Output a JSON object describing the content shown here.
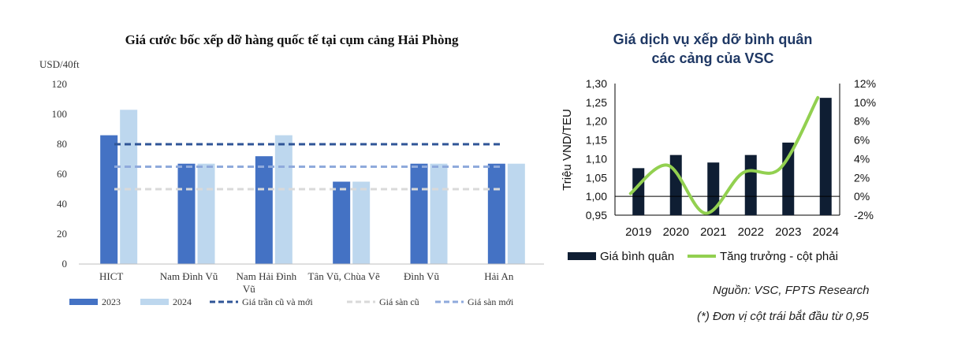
{
  "chart_data": [
    {
      "type": "bar",
      "title": "Giá cước bốc xếp dỡ hàng quốc tế tại cụm cảng Hải Phòng",
      "ylabel": "USD/40ft",
      "ylim": [
        0,
        120
      ],
      "yticks": [
        "0",
        "20",
        "40",
        "60",
        "80",
        "100",
        "120"
      ],
      "grid": false,
      "legend_position": "bottom",
      "categories": [
        {
          "line1": "HICT",
          "line2": ""
        },
        {
          "line1": "Nam Đình Vũ",
          "line2": ""
        },
        {
          "line1": "Nam Hải Đình",
          "line2": "Vũ"
        },
        {
          "line1": "Tân Vũ, Chùa Vẽ",
          "line2": ""
        },
        {
          "line1": "Đình Vũ",
          "line2": ""
        },
        {
          "line1": "Hải An",
          "line2": ""
        }
      ],
      "series": [
        {
          "name": "2023",
          "color": "#4472c4",
          "values": [
            86,
            67,
            72,
            55,
            67,
            67
          ]
        },
        {
          "name": "2024",
          "color": "#bdd7ee",
          "values": [
            103,
            67,
            86,
            55,
            67,
            67
          ]
        }
      ],
      "reference_lines": [
        {
          "name": "Giá trần cũ và mới",
          "value": 80,
          "color": "#2f5597"
        },
        {
          "name": "Giá sàn cũ",
          "value": 50,
          "color": "#d9d9d9"
        },
        {
          "name": "Giá sàn mới",
          "value": 65,
          "color": "#8faadc"
        }
      ]
    },
    {
      "type": "bar",
      "title_line1": "Giá dịch vụ xếp dỡ bình quân",
      "title_line2": "các cảng của VSC",
      "ylabel": "Triệu VND/TEU",
      "ylim": [
        0.95,
        1.3
      ],
      "yticks": [
        "0,95",
        "1,00",
        "1,05",
        "1,10",
        "1,15",
        "1,20",
        "1,25",
        "1,30"
      ],
      "y2lim": [
        -0.02,
        0.12
      ],
      "y2ticks": [
        "-2%",
        "0%",
        "2%",
        "4%",
        "6%",
        "8%",
        "10%",
        "12%"
      ],
      "legend_position": "bottom",
      "categories": [
        "2019",
        "2020",
        "2021",
        "2022",
        "2023",
        "2024"
      ],
      "series": [
        {
          "name": "Giá bình quân",
          "color": "#0f1e33",
          "values": [
            1.075,
            1.11,
            1.09,
            1.11,
            1.143,
            1.262
          ]
        },
        {
          "name": "Tăng trưởng - cột phải",
          "color": "#92d050",
          "axis": "right",
          "values": [
            0.003,
            0.033,
            -0.018,
            0.025,
            0.03,
            0.105
          ]
        }
      ]
    }
  ],
  "source_note": "Nguồn: VSC, FPTS Research",
  "unit_note": "(*) Đơn vị cột trái bắt đầu từ 0,95"
}
